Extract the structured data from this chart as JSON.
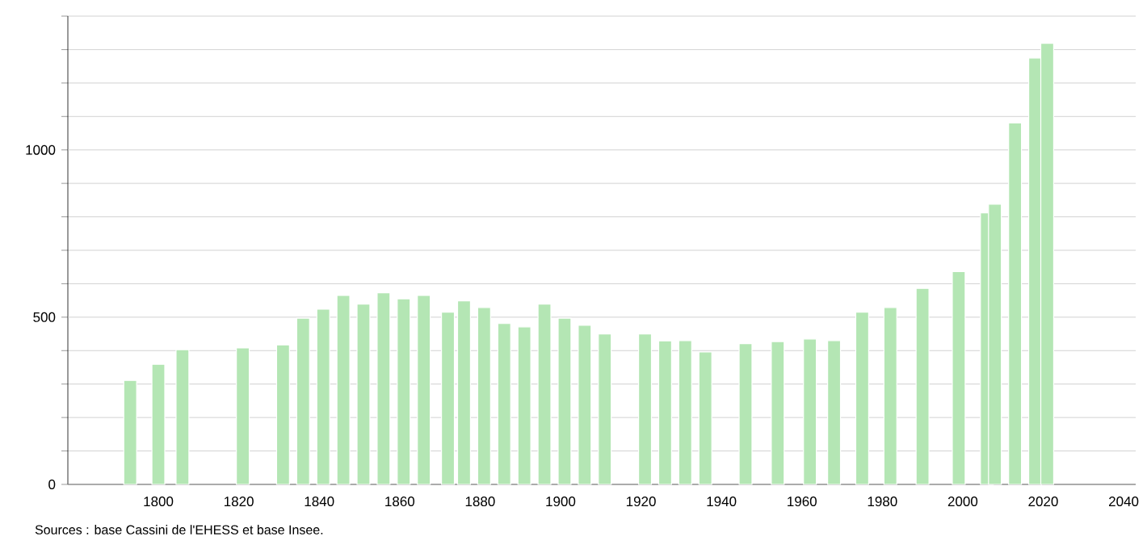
{
  "chart_data": {
    "type": "bar",
    "x": [
      1793,
      1800,
      1806,
      1821,
      1831,
      1836,
      1841,
      1846,
      1851,
      1856,
      1861,
      1866,
      1872,
      1876,
      1881,
      1886,
      1891,
      1896,
      1901,
      1906,
      1911,
      1921,
      1926,
      1931,
      1936,
      1946,
      1954,
      1962,
      1968,
      1975,
      1982,
      1990,
      1999,
      2006,
      2008,
      2013,
      2018,
      2021
    ],
    "values": [
      311,
      359,
      403,
      408,
      417,
      497,
      524,
      565,
      539,
      573,
      555,
      565,
      515,
      549,
      529,
      481,
      471,
      539,
      497,
      476,
      450,
      450,
      429,
      430,
      396,
      421,
      427,
      435,
      430,
      515,
      529,
      586,
      636,
      812,
      838,
      1081,
      1275,
      1319
    ],
    "color": "#b4e6b4",
    "xlim": [
      1777.5,
      2043
    ],
    "xticks": [
      1800,
      1820,
      1840,
      1860,
      1880,
      1900,
      1920,
      1940,
      1960,
      1980,
      2000,
      2020,
      2040
    ],
    "ylim": [
      0,
      1400
    ],
    "yticks": [
      0,
      {
        "value": 100,
        "label": null
      },
      {
        "value": 200,
        "label": null
      },
      {
        "value": 300,
        "label": null
      },
      {
        "value": 400,
        "label": null
      },
      500,
      {
        "value": 600,
        "label": null
      },
      {
        "value": 700,
        "label": null
      },
      {
        "value": 800,
        "label": null
      },
      {
        "value": 900,
        "label": null
      },
      1000,
      {
        "value": 1100,
        "label": null
      },
      {
        "value": 1200,
        "label": null
      },
      {
        "value": 1300,
        "label": null
      },
      {
        "value": 1400,
        "label": null
      }
    ],
    "grid": "y",
    "annotations": [
      "Sources : base Cassini de l'EHESS et base Insee."
    ]
  }
}
